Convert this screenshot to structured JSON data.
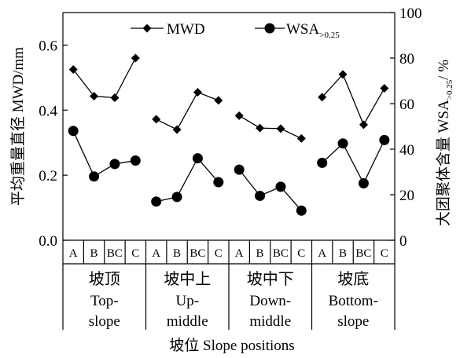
{
  "chart_data": {
    "type": "line",
    "categories": [
      "A",
      "B",
      "BC",
      "C"
    ],
    "groups": [
      {
        "cn": "坡顶",
        "en_lines": [
          "Top-",
          "slope"
        ]
      },
      {
        "cn": "坡中上",
        "en_lines": [
          "Up-",
          "middle"
        ]
      },
      {
        "cn": "坡中下",
        "en_lines": [
          "Down-",
          "middle"
        ]
      },
      {
        "cn": "坡底",
        "en_lines": [
          "Bottom-",
          "slope"
        ]
      }
    ],
    "xlabel": "坡位 Slope positions",
    "ylabel_left": "平均重量直径 MWD/mm",
    "ylabel_right": "大团聚体含量 WSA>0.25/ %",
    "y_left": {
      "lim": [
        0,
        0.7
      ],
      "ticks": [
        0.0,
        0.2,
        0.4,
        0.6
      ],
      "tick_labels": [
        "0.0",
        "0.2",
        "0.4",
        "0.6"
      ]
    },
    "y_right": {
      "lim": [
        0,
        100
      ],
      "ticks": [
        0,
        20,
        40,
        60,
        80,
        100
      ],
      "tick_labels": [
        "0",
        "20",
        "40",
        "60",
        "80",
        "100"
      ]
    },
    "series": [
      {
        "name": "MWD",
        "axis": "left",
        "marker": "diamond",
        "groups": [
          [
            0.525,
            0.443,
            0.438,
            0.56
          ],
          [
            0.372,
            0.34,
            0.455,
            0.43
          ],
          [
            0.383,
            0.345,
            0.343,
            0.313
          ],
          [
            0.44,
            0.51,
            0.355,
            0.467
          ]
        ]
      },
      {
        "name": "WSA",
        "name_sub": ">0.25",
        "axis": "right",
        "marker": "circle",
        "groups": [
          [
            48,
            28,
            33.5,
            35
          ],
          [
            17,
            19,
            36,
            25.5
          ],
          [
            31,
            19.5,
            23.5,
            13
          ],
          [
            34,
            42.5,
            25,
            44
          ]
        ]
      }
    ],
    "legend": {
      "position": "top",
      "items": [
        "MWD",
        "WSA>0.25"
      ]
    },
    "grid": false
  }
}
